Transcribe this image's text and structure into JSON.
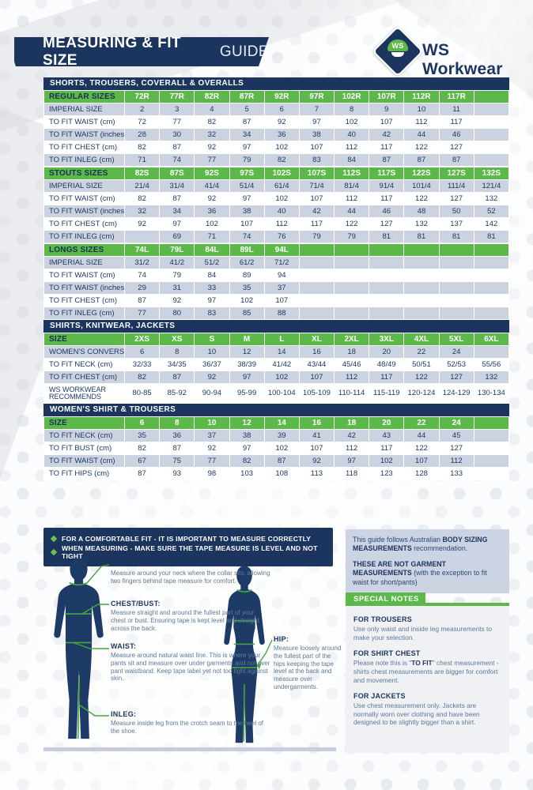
{
  "header": {
    "title_bold": "MEASURING & FIT SIZE",
    "title_light": "GUIDE",
    "logo_text": "WS",
    "brand": "WS Workwear"
  },
  "colors": {
    "navy": "#1b355f",
    "green": "#5cb848",
    "row_shade": "#ccd3e0",
    "info_box_bg": "#ccd3e2",
    "notes_bg": "#f0f1f4",
    "desc_text": "#5f7995",
    "silhouette": "#1d3b66",
    "measure_line_green": "#44a83b"
  },
  "sections": [
    {
      "title": "SHORTS, TROUSERS, COVERALL & OVERALLS",
      "groups": [
        {
          "header": "REGULAR SIZES",
          "columns": [
            "72R",
            "77R",
            "82R",
            "87R",
            "92R",
            "97R",
            "102R",
            "107R",
            "112R",
            "117R",
            ""
          ],
          "rows": [
            {
              "label": "IMPERIAL SIZE",
              "values": [
                "2",
                "3",
                "4",
                "5",
                "6",
                "7",
                "8",
                "9",
                "10",
                "11",
                ""
              ]
            },
            {
              "label": "TO FIT WAIST (cm)",
              "values": [
                "72",
                "77",
                "82",
                "87",
                "92",
                "97",
                "102",
                "107",
                "112",
                "117",
                ""
              ]
            },
            {
              "label": "TO FIT WAIST (inches)",
              "values": [
                "28",
                "30",
                "32",
                "34",
                "36",
                "38",
                "40",
                "42",
                "44",
                "46",
                ""
              ]
            },
            {
              "label": "TO FIT CHEST (cm)",
              "values": [
                "82",
                "87",
                "92",
                "97",
                "102",
                "107",
                "112",
                "117",
                "122",
                "127",
                ""
              ]
            },
            {
              "label": "TO FIT INLEG (cm)",
              "values": [
                "71",
                "74",
                "77",
                "79",
                "82",
                "83",
                "84",
                "87",
                "87",
                "87",
                ""
              ]
            }
          ]
        },
        {
          "header": "STOUTS SIZES",
          "columns": [
            "82S",
            "87S",
            "92S",
            "97S",
            "102S",
            "107S",
            "112S",
            "117S",
            "122S",
            "127S",
            "132S"
          ],
          "rows": [
            {
              "label": "IMPERIAL SIZE",
              "values": [
                "21/4",
                "31/4",
                "41/4",
                "51/4",
                "61/4",
                "71/4",
                "81/4",
                "91/4",
                "101/4",
                "111/4",
                "121/4"
              ]
            },
            {
              "label": "TO FIT WAIST (cm)",
              "values": [
                "82",
                "87",
                "92",
                "97",
                "102",
                "107",
                "112",
                "117",
                "122",
                "127",
                "132"
              ]
            },
            {
              "label": "TO FIT WAIST (inches)",
              "values": [
                "32",
                "34",
                "36",
                "38",
                "40",
                "42",
                "44",
                "46",
                "48",
                "50",
                "52"
              ]
            },
            {
              "label": "TO FIT CHEST (cm)",
              "values": [
                "92",
                "97",
                "102",
                "107",
                "112",
                "117",
                "122",
                "127",
                "132",
                "137",
                "142"
              ]
            },
            {
              "label": "TO FIT INLEG (cm)",
              "values": [
                "",
                "69",
                "71",
                "74",
                "76",
                "79",
                "79",
                "81",
                "81",
                "81",
                "81"
              ]
            }
          ]
        },
        {
          "header": "LONGS SIZES",
          "columns": [
            "74L",
            "79L",
            "84L",
            "89L",
            "94L",
            "",
            "",
            "",
            "",
            "",
            ""
          ],
          "rows": [
            {
              "label": "IMPERIAL SIZE",
              "values": [
                "31/2",
                "41/2",
                "51/2",
                "61/2",
                "71/2",
                "",
                "",
                "",
                "",
                "",
                ""
              ]
            },
            {
              "label": "TO FIT WAIST (cm)",
              "values": [
                "74",
                "79",
                "84",
                "89",
                "94",
                "",
                "",
                "",
                "",
                "",
                ""
              ]
            },
            {
              "label": "TO FIT WAIST (inches)",
              "values": [
                "29",
                "31",
                "33",
                "35",
                "37",
                "",
                "",
                "",
                "",
                "",
                ""
              ]
            },
            {
              "label": "TO FIT CHEST (cm)",
              "values": [
                "87",
                "92",
                "97",
                "102",
                "107",
                "",
                "",
                "",
                "",
                "",
                ""
              ]
            },
            {
              "label": "TO FIT INLEG (cm)",
              "values": [
                "77",
                "80",
                "83",
                "85",
                "88",
                "",
                "",
                "",
                "",
                "",
                ""
              ]
            }
          ]
        }
      ]
    },
    {
      "title": "SHIRTS, KNITWEAR, JACKETS",
      "groups": [
        {
          "header": "SIZE",
          "columns": [
            "2XS",
            "XS",
            "S",
            "M",
            "L",
            "XL",
            "2XL",
            "3XL",
            "4XL",
            "5XL",
            "6XL"
          ],
          "rows": [
            {
              "label": "WOMEN'S CONVERSION",
              "values": [
                "6",
                "8",
                "10",
                "12",
                "14",
                "16",
                "18",
                "20",
                "22",
                "24",
                ""
              ]
            },
            {
              "label": "TO FIT NECK (cm)",
              "values": [
                "32/33",
                "34/35",
                "36/37",
                "38/39",
                "41/42",
                "43/44",
                "45/46",
                "48/49",
                "50/51",
                "52/53",
                "55/56"
              ]
            },
            {
              "label": "TO FIT CHEST (cm)",
              "values": [
                "82",
                "87",
                "92",
                "97",
                "102",
                "107",
                "112",
                "117",
                "122",
                "127",
                "132"
              ]
            },
            {
              "label": "WS WORKWEAR RECOMMENDS",
              "tall": true,
              "values": [
                "80-85",
                "85-92",
                "90-94",
                "95-99",
                "100-104",
                "105-109",
                "110-114",
                "115-119",
                "120-124",
                "124-129",
                "130-134"
              ]
            }
          ]
        }
      ]
    },
    {
      "title": "WOMEN'S SHIRT & TROUSERS",
      "groups": [
        {
          "header": "SIZE",
          "columns": [
            "6",
            "8",
            "10",
            "12",
            "14",
            "16",
            "18",
            "20",
            "22",
            "24",
            ""
          ],
          "rows": [
            {
              "label": "TO FIT NECK (cm)",
              "values": [
                "35",
                "36",
                "37",
                "38",
                "39",
                "41",
                "42",
                "43",
                "44",
                "45",
                ""
              ]
            },
            {
              "label": "TO FIT BUST (cm)",
              "values": [
                "82",
                "87",
                "92",
                "97",
                "102",
                "107",
                "112",
                "117",
                "122",
                "127",
                ""
              ]
            },
            {
              "label": "TO FIT WAIST (cm)",
              "values": [
                "67",
                "75",
                "77",
                "82",
                "87",
                "92",
                "97",
                "102",
                "107",
                "112",
                ""
              ]
            },
            {
              "label": "TO FIT HIPS (cm)",
              "values": [
                "87",
                "93",
                "98",
                "103",
                "108",
                "113",
                "118",
                "123",
                "128",
                "133",
                ""
              ]
            }
          ]
        }
      ]
    }
  ],
  "tips_box": {
    "items": [
      "FOR A COMFORTABLE FIT - IT IS IMPORTANT TO MEASURE CORRECTLY",
      "WHEN MEASURING - MAKE SURE THE TAPE MEASURE IS LEVEL AND NOT TIGHT"
    ]
  },
  "measure_guide": {
    "labels": [
      {
        "name": "NECK:",
        "desc": "Measure around your neck where the collar sits, allowing two fingers behind tape measure for comfort."
      },
      {
        "name": "CHEST/BUST:",
        "desc": "Measure straight and around the fullest part of your chest or bust. Ensuring tape is kept level and straight across the back."
      },
      {
        "name": "WAIST:",
        "desc": "Measure around natural waist line. This is where your pants sit and measure over under garments and not over pant waistband. Keep tape label yet not too tight against skin."
      },
      {
        "name": "INLEG:",
        "desc": "Measure inside leg from the crotch seam to the heel of the shoe."
      },
      {
        "name": "HIP:",
        "desc": "Measure loosely around the fullest part of the hips keeping the tape level at the back and measure over undergarments."
      }
    ]
  },
  "info_box": {
    "p1": [
      {
        "t": "This guide follows Australian ",
        "b": false
      },
      {
        "t": "BODY SIZING MEASUREMENTS",
        "b": true
      },
      {
        "t": " recommendation.",
        "b": false
      }
    ],
    "p2": [
      {
        "t": "THESE ARE NOT GARMENT MEASUREMENTS",
        "b": true
      },
      {
        "t": " (with the exception to fit waist for short/pants)",
        "b": false
      }
    ]
  },
  "special_notes": {
    "title": "SPECIAL NOTES",
    "notes": [
      {
        "heading": "FOR TROUSERS",
        "segments": [
          {
            "t": "Use only waist and inside leg measurements to make your selection.",
            "b": false
          }
        ]
      },
      {
        "heading": "FOR SHIRT CHEST",
        "segments": [
          {
            "t": "Please note this is \"",
            "b": false
          },
          {
            "t": "TO FIT",
            "b": true
          },
          {
            "t": "\" chest measurement - shirts chest measurements are bigger for comfort and movement.",
            "b": false
          }
        ]
      },
      {
        "heading": "FOR JACKETS",
        "segments": [
          {
            "t": "Use chest measurement only. Jackets are normally worn over clothing and have been designed to be slightly bigger than a shirt.",
            "b": false
          }
        ]
      }
    ]
  }
}
